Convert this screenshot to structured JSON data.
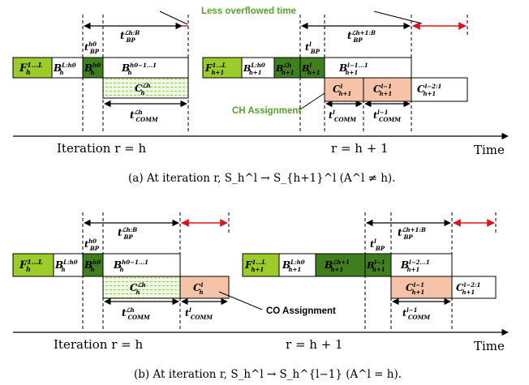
{
  "colors": {
    "forward": "#9ccc2a",
    "backward_light": "#ffffff",
    "backward_dark": "#3f7f1d",
    "comm_dotted": "#e4f4d7",
    "assign_salmon": "#f6c3a8",
    "annotation_green": "#5aa02c",
    "red_arrow": "#d9161c"
  },
  "top": {
    "annotation": "Less overflowed time",
    "ch_assignment": "CH Assignment",
    "axis_left": "Iteration r = h",
    "axis_right": "r = h + 1",
    "axis_end": "Time",
    "caption": "(a)  At iteration r, S_h^l → S_{h+1}^l (A^l ≠ h)."
  },
  "bottom": {
    "co_assignment": "CO Assignment",
    "axis_left": "Iteration  r = h",
    "axis_right": "r = h + 1",
    "axis_end": "Time",
    "caption": "(b)  At iteration r, S_h^l → S_h^{l−1} (A^l = h)."
  },
  "labels": {
    "F_h": [
      "F",
      "1...L",
      "h"
    ],
    "B_h_Lh0": [
      "B",
      "L:h0",
      "h"
    ],
    "B_h_h0": [
      "B",
      "h0",
      "h"
    ],
    "B_h_rest": [
      "B",
      "h0−1...1",
      "h"
    ],
    "C_h_Lh": [
      "C",
      "ℒh",
      "h"
    ],
    "t_BP_hB": [
      "t",
      "ℒh:B",
      "BP"
    ],
    "t_BP_h0": [
      "t",
      "h0",
      "BP"
    ],
    "t_COMM_Lh": [
      "t",
      "ℒh",
      "COMM"
    ],
    "F_h1": [
      "F",
      "1...L",
      "h+1"
    ],
    "B_h1_Lh0": [
      "B",
      "L:h0",
      "h+1"
    ],
    "B_h1_Lh": [
      "B",
      "ℒh",
      "h+1"
    ],
    "B_h1_l": [
      "B",
      "l",
      "h+1"
    ],
    "B_h1_lm1": [
      "B",
      "l−1...1",
      "h+1"
    ],
    "C_h1_l": [
      "C",
      "l",
      "h+1"
    ],
    "C_h1_lm1": [
      "C",
      "l−1",
      "h+1"
    ],
    "C_h1_lm2": [
      "C",
      "l−2:1",
      "h+1"
    ],
    "t_BP_h1B": [
      "t",
      "ℒh+1:B",
      "BP"
    ],
    "t_BP_l": [
      "t",
      "l",
      "BP"
    ],
    "t_COMM_l": [
      "t",
      "l",
      "COMM"
    ],
    "t_COMM_lm1": [
      "t",
      "l−1",
      "COMM"
    ],
    "C_h_l": [
      "C",
      "l",
      "h"
    ],
    "B_h1_Lh1": [
      "B",
      "ℒh+1",
      "h+1"
    ],
    "B_h1_lm1s": [
      "B",
      "l−1",
      "h+1"
    ],
    "B_h1_lm2": [
      "B",
      "l−2...1",
      "h+1"
    ],
    "t_BP_h1B_b": [
      "t",
      "ℒh+1:B",
      "BP"
    ]
  }
}
